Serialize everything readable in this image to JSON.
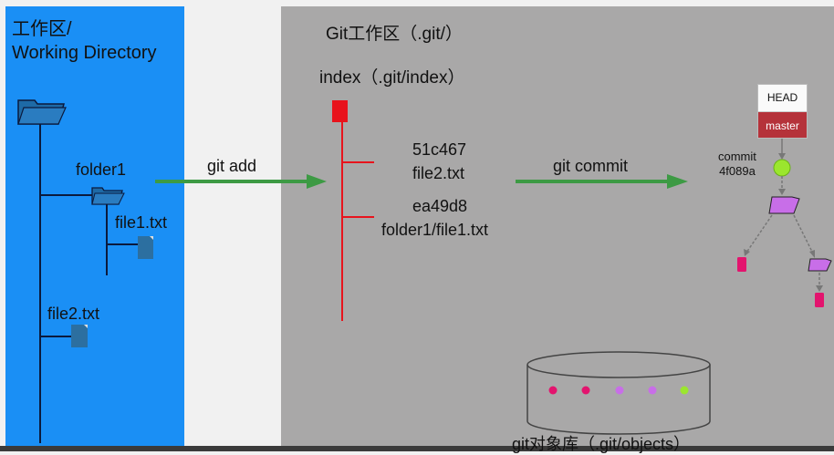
{
  "working_dir": {
    "title_line1": "工作区/",
    "title_line2": "Working Directory",
    "folder1_label": "folder1",
    "file1_label": "file1.txt",
    "file2_label": "file2.txt"
  },
  "git_area": {
    "title": "Git工作区（.git/）",
    "index_label": "index（.git/index）",
    "entry1_hash": "51c467",
    "entry1_file": "file2.txt",
    "entry2_hash": "ea49d8",
    "entry2_file": "folder1/file1.txt",
    "objects_label": "git对象库（.git/objects）"
  },
  "arrows": {
    "add_label": "git add",
    "commit_label": "git commit"
  },
  "refs": {
    "head_label": "HEAD",
    "branch_label": "master",
    "commit_word": "commit",
    "commit_hash": "4f089a"
  },
  "colors": {
    "working_bg": "#1a8ff5",
    "git_bg": "#a9a8a8",
    "arrow": "#3d9a44",
    "index_tree": "#e8131c",
    "folder_fill": "#1e6aa6",
    "commit_dot": "#9be62e",
    "tree_fill": "#c86ee8",
    "blob_fill": "#e3146e"
  },
  "icons": [
    "folder-icon",
    "file-icon",
    "index-file-icon",
    "commit-node-icon",
    "tree-icon",
    "blob-icon",
    "database-cylinder-icon"
  ]
}
